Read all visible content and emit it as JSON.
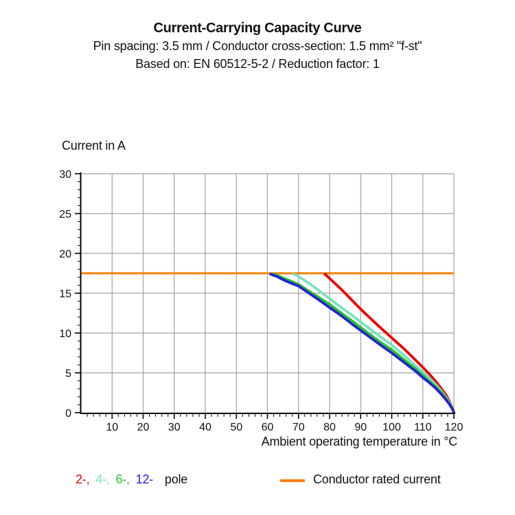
{
  "header": {
    "title": "Current-Carrying Capacity Curve",
    "subtitle1": "Pin spacing: 3.5 mm / Conductor cross-section: 1.5 mm² \"f-st\"",
    "subtitle2": "Based on: EN 60512-5-2 / Reduction factor: 1"
  },
  "chart_data": {
    "type": "line",
    "title": "Current-Carrying Capacity Curve",
    "xlabel": "Ambient operating temperature in °C",
    "ylabel": "Current in A",
    "xlim": [
      0,
      120
    ],
    "ylim": [
      0,
      30
    ],
    "x_ticks": [
      10,
      20,
      30,
      40,
      50,
      60,
      70,
      80,
      90,
      100,
      110,
      120
    ],
    "y_ticks": [
      0,
      5,
      10,
      15,
      20,
      25,
      30
    ],
    "x_minor_step": 2,
    "y_minor_step": 1,
    "grid": true,
    "grid_color": "#a0a0a0",
    "axis_color": "#000000",
    "rated_current": {
      "label": "Conductor rated current",
      "value": 17.5,
      "color": "#ff8000",
      "x_start": 0,
      "x_end": 120
    },
    "series": [
      {
        "name": "2-pole",
        "color": "#ee0000",
        "points": [
          [
            78.5,
            17.4
          ],
          [
            81,
            16.5
          ],
          [
            84,
            15.4
          ],
          [
            87,
            14.2
          ],
          [
            90,
            13.0
          ],
          [
            93,
            11.9
          ],
          [
            96,
            10.8
          ],
          [
            100,
            9.4
          ],
          [
            104,
            8.0
          ],
          [
            107,
            6.85
          ],
          [
            110,
            5.7
          ],
          [
            112,
            4.9
          ],
          [
            114,
            4.0
          ],
          [
            116,
            3.0
          ],
          [
            117.5,
            2.2
          ],
          [
            118.7,
            1.3
          ],
          [
            119.6,
            0.5
          ],
          [
            120,
            0
          ]
        ]
      },
      {
        "name": "4-pole",
        "color": "#78e2c2",
        "points": [
          [
            68.5,
            17.4
          ],
          [
            70,
            17.1
          ],
          [
            72,
            16.6
          ],
          [
            75,
            15.8
          ],
          [
            78,
            14.9
          ],
          [
            80,
            14.3
          ],
          [
            84,
            13.15
          ],
          [
            88,
            12.0
          ],
          [
            92,
            10.8
          ],
          [
            96,
            9.65
          ],
          [
            100,
            8.5
          ],
          [
            104,
            7.2
          ],
          [
            108,
            5.8
          ],
          [
            110,
            5.1
          ],
          [
            112,
            4.4
          ],
          [
            114,
            3.6
          ],
          [
            116,
            2.7
          ],
          [
            117.5,
            1.9
          ],
          [
            118.6,
            1.25
          ],
          [
            119.5,
            0.6
          ],
          [
            120,
            0
          ]
        ]
      },
      {
        "name": "6-pole",
        "color": "#28c228",
        "points": [
          [
            62,
            17.4
          ],
          [
            64,
            17.1
          ],
          [
            66,
            16.75
          ],
          [
            68,
            16.45
          ],
          [
            70,
            16.1
          ],
          [
            73,
            15.35
          ],
          [
            76,
            14.6
          ],
          [
            80,
            13.6
          ],
          [
            84,
            12.45
          ],
          [
            88,
            11.3
          ],
          [
            92,
            10.1
          ],
          [
            96,
            8.95
          ],
          [
            100,
            7.9
          ],
          [
            104,
            6.65
          ],
          [
            108,
            5.4
          ],
          [
            110,
            4.7
          ],
          [
            112,
            4.0
          ],
          [
            114,
            3.3
          ],
          [
            116,
            2.5
          ],
          [
            117.5,
            1.75
          ],
          [
            118.5,
            1.2
          ],
          [
            119.4,
            0.6
          ],
          [
            120,
            0
          ]
        ]
      },
      {
        "name": "12-pole",
        "color": "#2222d8",
        "points": [
          [
            61,
            17.4
          ],
          [
            63,
            17.1
          ],
          [
            65,
            16.7
          ],
          [
            67,
            16.35
          ],
          [
            70,
            15.9
          ],
          [
            73,
            15.1
          ],
          [
            76,
            14.3
          ],
          [
            80,
            13.2
          ],
          [
            84,
            12.1
          ],
          [
            88,
            10.9
          ],
          [
            92,
            9.75
          ],
          [
            96,
            8.6
          ],
          [
            100,
            7.5
          ],
          [
            104,
            6.3
          ],
          [
            108,
            5.1
          ],
          [
            110,
            4.4
          ],
          [
            112,
            3.8
          ],
          [
            114,
            3.1
          ],
          [
            116,
            2.3
          ],
          [
            117.5,
            1.6
          ],
          [
            118.5,
            1.1
          ],
          [
            119.3,
            0.6
          ],
          [
            119.8,
            0.25
          ],
          [
            120,
            0
          ]
        ]
      }
    ],
    "legend_position": "bottom"
  },
  "legend": {
    "poles": [
      {
        "label": "2-,",
        "color": "#ee0000"
      },
      {
        "label": "4-,",
        "color": "#78e2c2"
      },
      {
        "label": "6-,",
        "color": "#28c228"
      },
      {
        "label": "12-",
        "color": "#2222d8"
      }
    ],
    "pole_suffix": "pole",
    "rated_label": "Conductor rated current",
    "rated_color": "#ff8000"
  }
}
